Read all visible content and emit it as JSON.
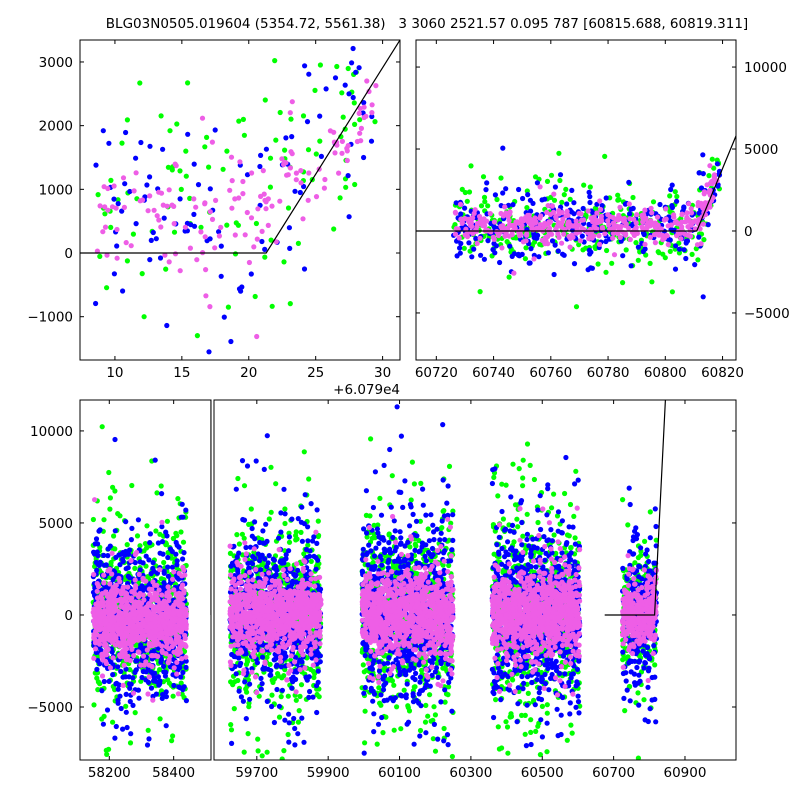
{
  "chart_data": {
    "title": "BLG03N0505.019604 (5354.72, 5561.38)   3 3060 2521.57 0.095 787 [60815.688, 60819.311]",
    "type": "scatter",
    "series_colors": {
      "blue": "#0000ff",
      "green": "#00ff00",
      "magenta": "#ee5ee6"
    },
    "model_color": "#000000",
    "panels": [
      {
        "name": "zoom-peak",
        "x_offset_label": "+6.079e4",
        "xlim": [
          7.39,
          31.3
        ],
        "ylim": [
          -1680,
          3345
        ],
        "xticks": [
          10,
          15,
          20,
          25,
          30
        ],
        "yticks": [
          3000,
          2000,
          1000,
          0,
          -1000
        ],
        "ytick_side": "left",
        "model_line": [
          [
            7.39,
            0
          ],
          [
            21.3,
            0
          ],
          [
            31.3,
            3345
          ]
        ],
        "clusters": [
          {
            "x": [
              8.5,
              29.5
            ],
            "center": 700,
            "spread": 900,
            "count": 110
          }
        ]
      },
      {
        "name": "season-last",
        "xlim": [
          60712.9,
          60824.7
        ],
        "ylim": [
          -7870,
          11650
        ],
        "xticks": [
          60720,
          60740,
          60760,
          60780,
          60800,
          60820
        ],
        "yticks": [
          10000,
          5000,
          0,
          -5000
        ],
        "ytick_side": "right",
        "model_line": [
          [
            60712.9,
            0
          ],
          [
            60811,
            0
          ],
          [
            60824.7,
            5800
          ]
        ],
        "clusters": [
          {
            "x": [
              60726,
              60819
            ],
            "center": 300,
            "spread": 1100,
            "count": 320
          }
        ]
      },
      {
        "name": "full-lightcurve",
        "broken_x": true,
        "segments": [
          {
            "xlim": [
              58109,
              58516
            ],
            "xticks": [
              58200,
              58400
            ]
          },
          {
            "xlim": [
              59580,
              61043
            ],
            "xticks": [
              59700,
              59900,
              60100,
              60300,
              60500,
              60700,
              60900
            ]
          }
        ],
        "ylim": [
          -7880,
          11680
        ],
        "yticks": [
          10000,
          5000,
          0,
          -5000
        ],
        "ytick_side": "left",
        "model_line": [
          [
            60675,
            0
          ],
          [
            60815,
            0
          ],
          [
            60845,
            11680
          ]
        ],
        "clusters": [
          {
            "x": [
              58150,
              58440
            ],
            "center": -300,
            "spread": 2000,
            "count": 700
          },
          {
            "x": [
              59625,
              59880
            ],
            "center": 0,
            "spread": 2000,
            "count": 700
          },
          {
            "x": [
              59995,
              60250
            ],
            "center": 0,
            "spread": 2300,
            "count": 750
          },
          {
            "x": [
              60360,
              60605
            ],
            "center": 0,
            "spread": 2300,
            "count": 750
          },
          {
            "x": [
              60725,
              60820
            ],
            "center": 0,
            "spread": 1800,
            "count": 250
          }
        ]
      }
    ]
  }
}
